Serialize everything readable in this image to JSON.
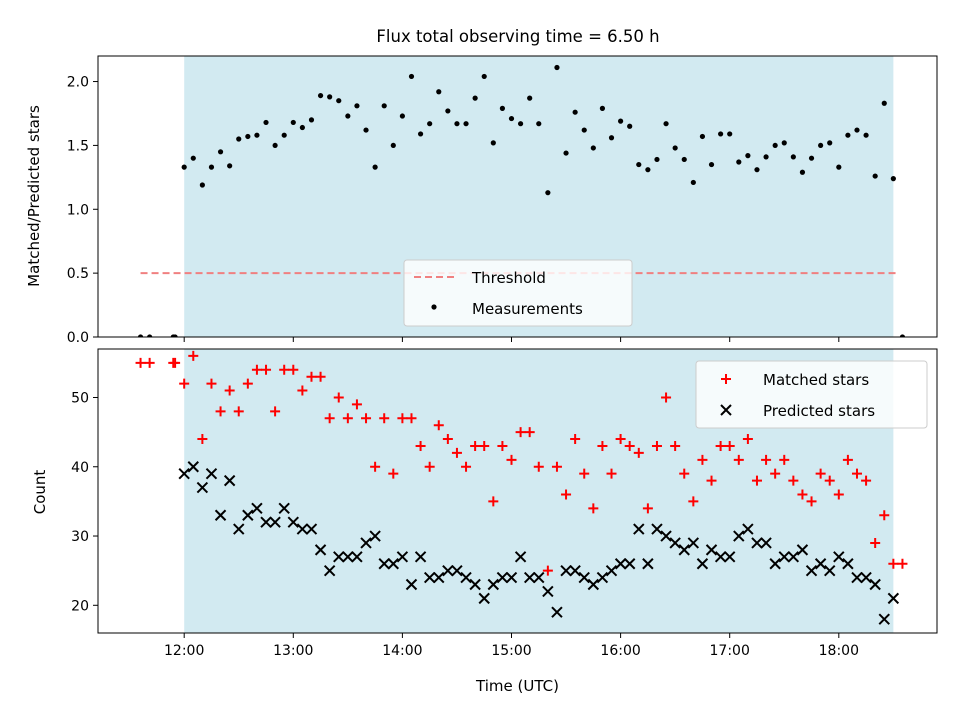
{
  "title": "Flux total observing time = 6.50 h",
  "chart_data": [
    {
      "type": "scatter",
      "ylabel": "Matched/Predicted stars",
      "ylim": [
        0,
        2.2
      ],
      "xlim_hours": [
        11.21,
        18.9
      ],
      "yticks": [
        "0.0",
        "0.5",
        "1.0",
        "1.5",
        "2.0"
      ],
      "shaded_span": [
        "12:00",
        "18:30"
      ],
      "shade_color": "#add8e6",
      "threshold": {
        "name": "Threshold",
        "value": 0.5,
        "color": "#f08080",
        "x_range": [
          "11:36",
          "18:32"
        ]
      },
      "legend_location": "lower center",
      "series": [
        {
          "name": "Measurements",
          "color": "#000000",
          "points": [
            [
              "11:36",
              0.0
            ],
            [
              "11:41",
              0.0
            ],
            [
              "11:54",
              0.0
            ],
            [
              "11:55",
              0.0
            ],
            [
              "12:00",
              1.33
            ],
            [
              "12:05",
              1.4
            ],
            [
              "12:10",
              1.19
            ],
            [
              "12:15",
              1.33
            ],
            [
              "12:20",
              1.45
            ],
            [
              "12:25",
              1.34
            ],
            [
              "12:30",
              1.55
            ],
            [
              "12:35",
              1.57
            ],
            [
              "12:40",
              1.58
            ],
            [
              "12:45",
              1.68
            ],
            [
              "12:50",
              1.5
            ],
            [
              "12:55",
              1.58
            ],
            [
              "13:00",
              1.68
            ],
            [
              "13:05",
              1.64
            ],
            [
              "13:10",
              1.7
            ],
            [
              "13:15",
              1.89
            ],
            [
              "13:20",
              1.88
            ],
            [
              "13:25",
              1.85
            ],
            [
              "13:30",
              1.73
            ],
            [
              "13:35",
              1.81
            ],
            [
              "13:40",
              1.62
            ],
            [
              "13:45",
              1.33
            ],
            [
              "13:50",
              1.81
            ],
            [
              "13:55",
              1.5
            ],
            [
              "14:00",
              1.73
            ],
            [
              "14:05",
              2.04
            ],
            [
              "14:10",
              1.59
            ],
            [
              "14:15",
              1.67
            ],
            [
              "14:20",
              1.92
            ],
            [
              "14:25",
              1.77
            ],
            [
              "14:30",
              1.67
            ],
            [
              "14:35",
              1.67
            ],
            [
              "14:40",
              1.87
            ],
            [
              "14:45",
              2.04
            ],
            [
              "14:50",
              1.52
            ],
            [
              "14:55",
              1.79
            ],
            [
              "15:00",
              1.71
            ],
            [
              "15:05",
              1.67
            ],
            [
              "15:10",
              1.87
            ],
            [
              "15:15",
              1.67
            ],
            [
              "15:20",
              1.13
            ],
            [
              "15:25",
              2.11
            ],
            [
              "15:30",
              1.44
            ],
            [
              "15:35",
              1.76
            ],
            [
              "15:40",
              1.62
            ],
            [
              "15:45",
              1.48
            ],
            [
              "15:50",
              1.79
            ],
            [
              "15:55",
              1.56
            ],
            [
              "16:00",
              1.69
            ],
            [
              "16:05",
              1.65
            ],
            [
              "16:10",
              1.35
            ],
            [
              "16:15",
              1.31
            ],
            [
              "16:20",
              1.39
            ],
            [
              "16:25",
              1.67
            ],
            [
              "16:30",
              1.48
            ],
            [
              "16:35",
              1.39
            ],
            [
              "16:40",
              1.21
            ],
            [
              "16:45",
              1.57
            ],
            [
              "16:50",
              1.35
            ],
            [
              "16:55",
              1.59
            ],
            [
              "17:00",
              1.59
            ],
            [
              "17:05",
              1.37
            ],
            [
              "17:10",
              1.42
            ],
            [
              "17:15",
              1.31
            ],
            [
              "17:20",
              1.41
            ],
            [
              "17:25",
              1.5
            ],
            [
              "17:30",
              1.52
            ],
            [
              "17:35",
              1.41
            ],
            [
              "17:40",
              1.29
            ],
            [
              "17:45",
              1.4
            ],
            [
              "17:50",
              1.5
            ],
            [
              "17:55",
              1.52
            ],
            [
              "18:00",
              1.33
            ],
            [
              "18:05",
              1.58
            ],
            [
              "18:10",
              1.62
            ],
            [
              "18:15",
              1.58
            ],
            [
              "18:20",
              1.26
            ],
            [
              "18:25",
              1.83
            ],
            [
              "18:30",
              1.24
            ],
            [
              "18:35",
              0.0
            ]
          ]
        }
      ]
    },
    {
      "type": "scatter",
      "xlabel": "Time (UTC)",
      "ylabel": "Count",
      "ylim": [
        16,
        57
      ],
      "xlim_hours": [
        11.21,
        18.9
      ],
      "yticks": [
        "20",
        "30",
        "40",
        "50"
      ],
      "xticks": [
        "12:00",
        "13:00",
        "14:00",
        "15:00",
        "16:00",
        "17:00",
        "18:00"
      ],
      "shaded_span": [
        "12:00",
        "18:30"
      ],
      "shade_color": "#add8e6",
      "legend_location": "upper right",
      "series": [
        {
          "name": "Matched stars",
          "marker": "plus",
          "color": "#ff0000",
          "points": [
            [
              "11:36",
              55
            ],
            [
              "11:41",
              55
            ],
            [
              "11:54",
              55
            ],
            [
              "11:55",
              55
            ],
            [
              "12:00",
              52
            ],
            [
              "12:05",
              56
            ],
            [
              "12:10",
              44
            ],
            [
              "12:15",
              52
            ],
            [
              "12:20",
              48
            ],
            [
              "12:25",
              51
            ],
            [
              "12:30",
              48
            ],
            [
              "12:35",
              52
            ],
            [
              "12:40",
              54
            ],
            [
              "12:45",
              54
            ],
            [
              "12:50",
              48
            ],
            [
              "12:55",
              54
            ],
            [
              "13:00",
              54
            ],
            [
              "13:05",
              51
            ],
            [
              "13:10",
              53
            ],
            [
              "13:15",
              53
            ],
            [
              "13:20",
              47
            ],
            [
              "13:25",
              50
            ],
            [
              "13:30",
              47
            ],
            [
              "13:35",
              49
            ],
            [
              "13:40",
              47
            ],
            [
              "13:45",
              40
            ],
            [
              "13:50",
              47
            ],
            [
              "13:55",
              39
            ],
            [
              "14:00",
              47
            ],
            [
              "14:05",
              47
            ],
            [
              "14:10",
              43
            ],
            [
              "14:15",
              40
            ],
            [
              "14:20",
              46
            ],
            [
              "14:25",
              44
            ],
            [
              "14:30",
              42
            ],
            [
              "14:35",
              40
            ],
            [
              "14:40",
              43
            ],
            [
              "14:45",
              43
            ],
            [
              "14:50",
              35
            ],
            [
              "14:55",
              43
            ],
            [
              "15:00",
              41
            ],
            [
              "15:05",
              45
            ],
            [
              "15:10",
              45
            ],
            [
              "15:15",
              40
            ],
            [
              "15:20",
              25
            ],
            [
              "15:25",
              40
            ],
            [
              "15:30",
              36
            ],
            [
              "15:35",
              44
            ],
            [
              "15:40",
              39
            ],
            [
              "15:45",
              34
            ],
            [
              "15:50",
              43
            ],
            [
              "15:55",
              39
            ],
            [
              "16:00",
              44
            ],
            [
              "16:05",
              43
            ],
            [
              "16:10",
              42
            ],
            [
              "16:15",
              34
            ],
            [
              "16:20",
              43
            ],
            [
              "16:25",
              50
            ],
            [
              "16:30",
              43
            ],
            [
              "16:35",
              39
            ],
            [
              "16:40",
              35
            ],
            [
              "16:45",
              41
            ],
            [
              "16:50",
              38
            ],
            [
              "16:55",
              43
            ],
            [
              "17:00",
              43
            ],
            [
              "17:05",
              41
            ],
            [
              "17:10",
              44
            ],
            [
              "17:15",
              38
            ],
            [
              "17:20",
              41
            ],
            [
              "17:25",
              39
            ],
            [
              "17:30",
              41
            ],
            [
              "17:35",
              38
            ],
            [
              "17:40",
              36
            ],
            [
              "17:45",
              35
            ],
            [
              "17:50",
              39
            ],
            [
              "17:55",
              38
            ],
            [
              "18:00",
              36
            ],
            [
              "18:05",
              41
            ],
            [
              "18:10",
              39
            ],
            [
              "18:15",
              38
            ],
            [
              "18:20",
              29
            ],
            [
              "18:25",
              33
            ],
            [
              "18:30",
              26
            ],
            [
              "18:35",
              26
            ]
          ]
        },
        {
          "name": "Predicted stars",
          "marker": "x",
          "color": "#000000",
          "points": [
            [
              "12:00",
              39
            ],
            [
              "12:05",
              40
            ],
            [
              "12:10",
              37
            ],
            [
              "12:15",
              39
            ],
            [
              "12:20",
              33
            ],
            [
              "12:25",
              38
            ],
            [
              "12:30",
              31
            ],
            [
              "12:35",
              33
            ],
            [
              "12:40",
              34
            ],
            [
              "12:45",
              32
            ],
            [
              "12:50",
              32
            ],
            [
              "12:55",
              34
            ],
            [
              "13:00",
              32
            ],
            [
              "13:05",
              31
            ],
            [
              "13:10",
              31
            ],
            [
              "13:15",
              28
            ],
            [
              "13:20",
              25
            ],
            [
              "13:25",
              27
            ],
            [
              "13:30",
              27
            ],
            [
              "13:35",
              27
            ],
            [
              "13:40",
              29
            ],
            [
              "13:45",
              30
            ],
            [
              "13:50",
              26
            ],
            [
              "13:55",
              26
            ],
            [
              "14:00",
              27
            ],
            [
              "14:05",
              23
            ],
            [
              "14:10",
              27
            ],
            [
              "14:15",
              24
            ],
            [
              "14:20",
              24
            ],
            [
              "14:25",
              25
            ],
            [
              "14:30",
              25
            ],
            [
              "14:35",
              24
            ],
            [
              "14:40",
              23
            ],
            [
              "14:45",
              21
            ],
            [
              "14:50",
              23
            ],
            [
              "14:55",
              24
            ],
            [
              "15:00",
              24
            ],
            [
              "15:05",
              27
            ],
            [
              "15:10",
              24
            ],
            [
              "15:15",
              24
            ],
            [
              "15:20",
              22
            ],
            [
              "15:25",
              19
            ],
            [
              "15:30",
              25
            ],
            [
              "15:35",
              25
            ],
            [
              "15:40",
              24
            ],
            [
              "15:45",
              23
            ],
            [
              "15:50",
              24
            ],
            [
              "15:55",
              25
            ],
            [
              "16:00",
              26
            ],
            [
              "16:05",
              26
            ],
            [
              "16:10",
              31
            ],
            [
              "16:15",
              26
            ],
            [
              "16:20",
              31
            ],
            [
              "16:25",
              30
            ],
            [
              "16:30",
              29
            ],
            [
              "16:35",
              28
            ],
            [
              "16:40",
              29
            ],
            [
              "16:45",
              26
            ],
            [
              "16:50",
              28
            ],
            [
              "16:55",
              27
            ],
            [
              "17:00",
              27
            ],
            [
              "17:05",
              30
            ],
            [
              "17:10",
              31
            ],
            [
              "17:15",
              29
            ],
            [
              "17:20",
              29
            ],
            [
              "17:25",
              26
            ],
            [
              "17:30",
              27
            ],
            [
              "17:35",
              27
            ],
            [
              "17:40",
              28
            ],
            [
              "17:45",
              25
            ],
            [
              "17:50",
              26
            ],
            [
              "17:55",
              25
            ],
            [
              "18:00",
              27
            ],
            [
              "18:05",
              26
            ],
            [
              "18:10",
              24
            ],
            [
              "18:15",
              24
            ],
            [
              "18:20",
              23
            ],
            [
              "18:25",
              18
            ],
            [
              "18:30",
              21
            ]
          ]
        }
      ]
    }
  ]
}
